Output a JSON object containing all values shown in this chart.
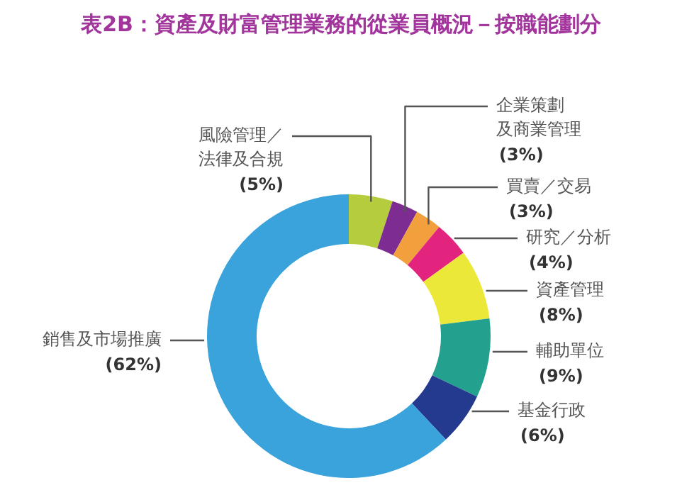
{
  "chart_data": {
    "type": "donut",
    "title": "表2B：資產及財富管理業務的從業員概況－按職能劃分",
    "categories": [
      "風險管理／法律及合規",
      "企業策劃及商業管理",
      "買賣／交易",
      "研究／分析",
      "資產管理",
      "輔助單位",
      "基金行政",
      "銷售及市場推廣"
    ],
    "values": [
      5,
      3,
      3,
      4,
      8,
      9,
      6,
      62
    ],
    "value_labels": [
      "(5%)",
      "(3%)",
      "(3%)",
      "(4%)",
      "(8%)",
      "(9%)",
      "(6%)",
      "(62%)"
    ],
    "colors": [
      "#b5cc3c",
      "#7d2d91",
      "#f2a03d",
      "#e3247f",
      "#ece83a",
      "#24a08f",
      "#233a8f",
      "#3aa3dc"
    ]
  }
}
